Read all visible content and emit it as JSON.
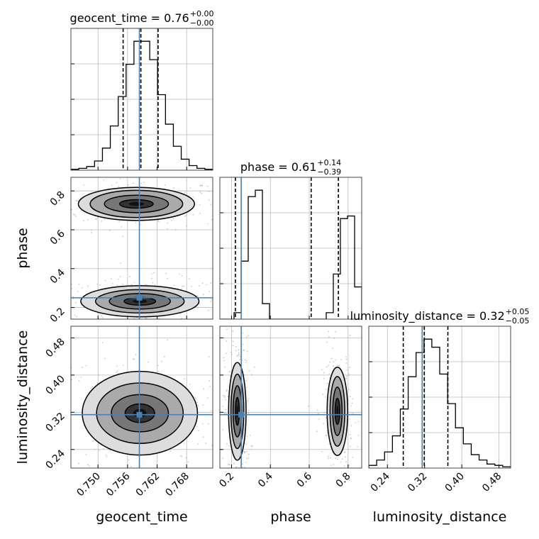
{
  "chart_data": {
    "type": "corner",
    "parameters": [
      {
        "name": "geocent_time",
        "axis_label": "geocent_time",
        "title": {
          "label": "geocent_time = ",
          "value": "0.76",
          "plus": "+0.00",
          "minus": "−0.00"
        },
        "range": [
          0.7445,
          0.7733
        ],
        "ticks": [
          0.75,
          0.756,
          0.762,
          0.768
        ],
        "tick_labels": [
          "0.750",
          "0.756",
          "0.762",
          "0.768"
        ],
        "truth": 0.7584,
        "quantiles": [
          0.7551,
          0.7587,
          0.7622
        ],
        "hist_counts": [
          1,
          2,
          4,
          10,
          24,
          48,
          80,
          115,
          140,
          140,
          120,
          82,
          50,
          26,
          12,
          5,
          2,
          1
        ]
      },
      {
        "name": "phase",
        "axis_label": "phase",
        "title": {
          "label": "phase = ",
          "value": "0.61",
          "plus": "+0.14",
          "minus": "−0.39"
        },
        "range": [
          0.14,
          0.87
        ],
        "ticks": [
          0.2,
          0.4,
          0.6,
          0.8
        ],
        "tick_labels": [
          "0.2",
          "0.4",
          "0.6",
          "0.8"
        ],
        "truth": 0.25,
        "quantiles": [
          0.22,
          0.61,
          0.75
        ],
        "hist_counts": [
          0,
          0,
          0.05,
          0.45,
          0.95,
          1.0,
          0.12,
          0,
          0,
          0,
          0,
          0,
          0,
          0,
          0,
          0.05,
          0.35,
          0.78,
          0.8,
          0.25
        ]
      },
      {
        "name": "luminosity_distance",
        "axis_label": "luminosity_distance",
        "title": {
          "label": "luminosity_distance = ",
          "value": "0.32",
          "plus": "+0.05",
          "minus": "−0.05"
        },
        "range": [
          0.2,
          0.505
        ],
        "ticks": [
          0.24,
          0.32,
          0.4,
          0.48
        ],
        "tick_labels": [
          "0.24",
          "0.32",
          "0.40",
          "0.48"
        ],
        "truth": 0.3148,
        "quantiles": [
          0.2741,
          0.3193,
          0.3701
        ],
        "hist_counts": [
          1,
          3,
          6,
          12,
          22,
          34,
          43,
          48,
          45,
          35,
          24,
          15,
          9,
          5,
          3,
          1.5,
          1,
          0.5
        ]
      }
    ],
    "contours": [
      {
        "panel": "phase_vs_geocent_time",
        "blobs": [
          {
            "cx": 0.7578,
            "cy": 0.733,
            "rx": [
              0.0034,
              0.0065,
              0.0094,
              0.0118
            ],
            "ry": [
              0.022,
              0.045,
              0.07,
              0.085
            ]
          },
          {
            "cx": 0.7585,
            "cy": 0.232,
            "rx": [
              0.0032,
              0.0062,
              0.009,
              0.012
            ],
            "ry": [
              0.02,
              0.04,
              0.06,
              0.08
            ]
          }
        ]
      },
      {
        "panel": "luminosity_distance_vs_geocent_time",
        "blobs": [
          {
            "cx": 0.7585,
            "cy": 0.318,
            "rx": [
              0.003,
              0.0058,
              0.0088,
              0.0117
            ],
            "ry": [
              0.02,
              0.04,
              0.065,
              0.09
            ]
          }
        ]
      },
      {
        "panel": "luminosity_distance_vs_phase",
        "blobs": [
          {
            "cx": 0.23,
            "cy": 0.322,
            "rx": [
              0.01,
              0.022,
              0.033,
              0.045
            ],
            "ry": [
              0.03,
              0.055,
              0.08,
              0.105
            ]
          },
          {
            "cx": 0.745,
            "cy": 0.322,
            "rx": [
              0.012,
              0.024,
              0.038,
              0.053
            ],
            "ry": [
              0.028,
              0.052,
              0.075,
              0.095
            ]
          }
        ]
      }
    ],
    "grid": true,
    "colors": {
      "truth": "#4682b4",
      "hist": "#000000",
      "grid": "#bbbbbb",
      "frame": "#444444"
    }
  }
}
